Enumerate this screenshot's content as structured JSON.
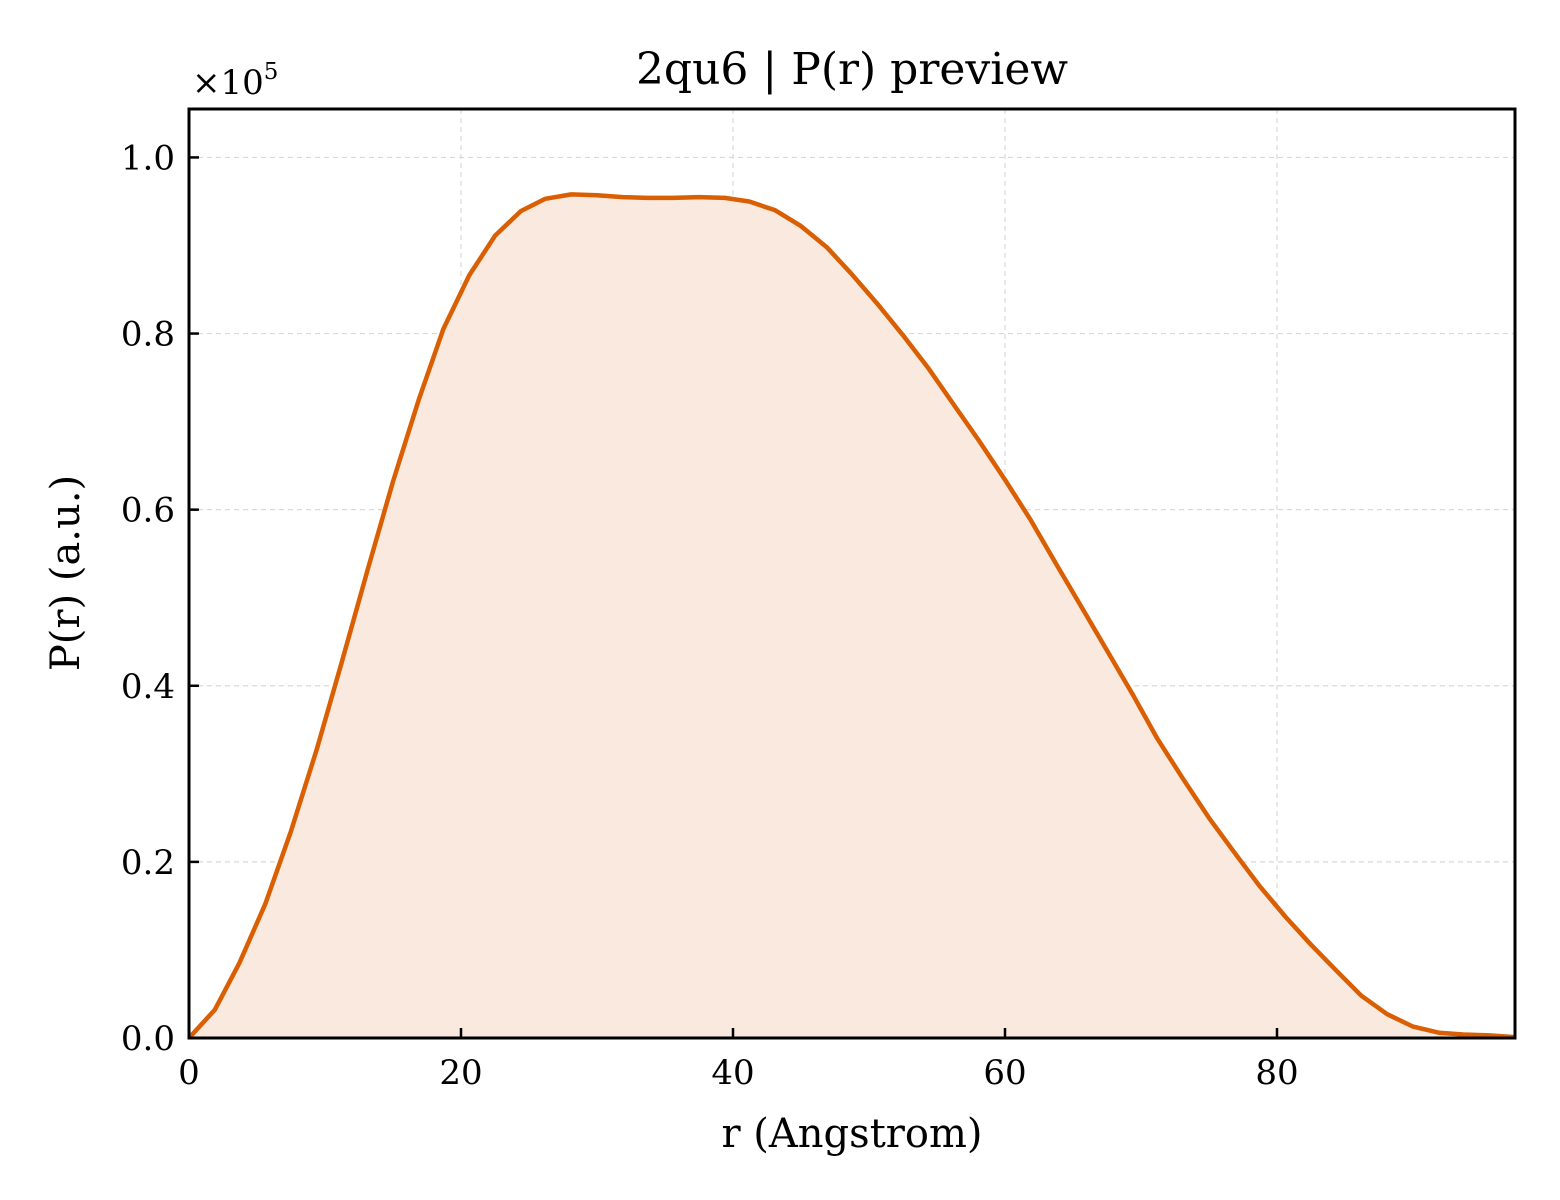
{
  "chart_data": {
    "type": "area",
    "title": "2qu6 | P(r) preview",
    "xlabel": "r (Angstrom)",
    "ylabel": "P(r) (a.u.)",
    "y_offset_label": "×10",
    "y_offset_exponent": "5",
    "xlim": [
      0,
      97.5
    ],
    "ylim": [
      0,
      1.055
    ],
    "xticks": [
      0,
      20,
      40,
      60,
      80
    ],
    "xtick_labels": [
      "0",
      "20",
      "40",
      "60",
      "80"
    ],
    "yticks": [
      0,
      0.2,
      0.4,
      0.6,
      0.8,
      1.0
    ],
    "ytick_labels": [
      "0.0",
      "0.2",
      "0.4",
      "0.6",
      "0.8",
      "1.0"
    ],
    "grid": true,
    "line_color": "#d95f02",
    "fill_color": "#f9e9df",
    "series": [
      {
        "x": [
          0,
          1.9,
          3.7,
          5.6,
          7.5,
          9.4,
          11.2,
          13.1,
          15.0,
          16.9,
          18.7,
          20.6,
          22.5,
          24.4,
          26.2,
          28.1,
          30.0,
          31.9,
          33.7,
          35.6,
          37.5,
          39.4,
          41.2,
          43.1,
          45.0,
          46.9,
          48.7,
          50.6,
          52.5,
          54.4,
          56.2,
          58.1,
          60.0,
          61.9,
          63.7,
          65.6,
          67.5,
          69.4,
          71.2,
          73.1,
          75.0,
          76.9,
          78.7,
          80.6,
          82.5,
          84.4,
          86.2,
          88.1,
          90.0,
          91.9,
          93.7,
          95.6,
          97.5
        ],
        "values": [
          0.0,
          0.032,
          0.085,
          0.152,
          0.235,
          0.328,
          0.425,
          0.53,
          0.632,
          0.725,
          0.805,
          0.866,
          0.911,
          0.939,
          0.953,
          0.958,
          0.957,
          0.955,
          0.954,
          0.954,
          0.955,
          0.954,
          0.95,
          0.94,
          0.922,
          0.898,
          0.868,
          0.834,
          0.798,
          0.76,
          0.72,
          0.678,
          0.634,
          0.588,
          0.54,
          0.49,
          0.44,
          0.39,
          0.34,
          0.294,
          0.25,
          0.21,
          0.173,
          0.138,
          0.106,
          0.076,
          0.048,
          0.027,
          0.013,
          0.006,
          0.004,
          0.003,
          0.001
        ]
      }
    ]
  }
}
